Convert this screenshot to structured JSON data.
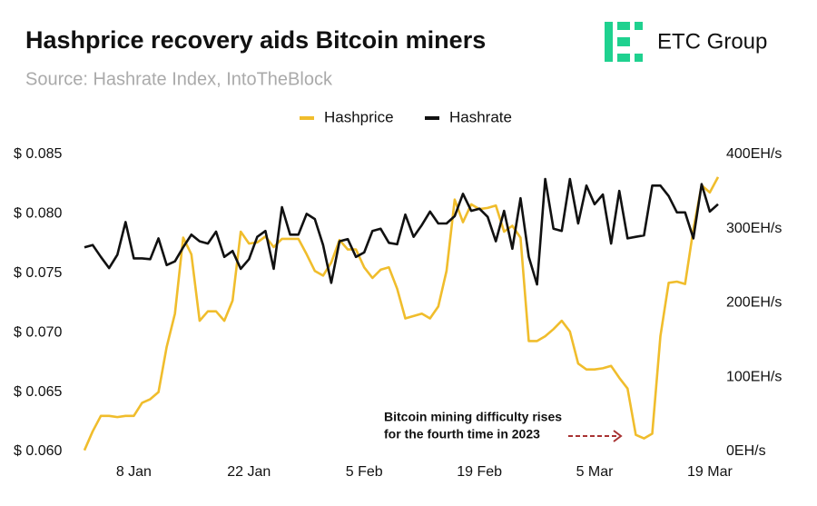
{
  "chart_data": {
    "type": "line",
    "title": "Hashprice recovery aids Bitcoin miners",
    "subtitle": "Source: Hashrate Index, IntoTheBlock",
    "brand": "ETC Group",
    "annotation": [
      "Bitcoin mining difficulty rises",
      "for the fourth time in 2023"
    ],
    "categories": [
      null,
      null,
      null,
      null,
      null,
      null,
      "8 Jan",
      null,
      null,
      null,
      null,
      null,
      null,
      null,
      null,
      null,
      null,
      null,
      null,
      null,
      "22 Jan",
      null,
      null,
      null,
      null,
      null,
      null,
      null,
      null,
      null,
      null,
      null,
      null,
      null,
      "5 Feb",
      null,
      null,
      null,
      null,
      null,
      null,
      null,
      null,
      null,
      null,
      null,
      null,
      null,
      "19 Feb",
      null,
      null,
      null,
      null,
      null,
      null,
      null,
      null,
      null,
      null,
      null,
      null,
      null,
      "5 Mar",
      null,
      null,
      null,
      null,
      null,
      null,
      null,
      null,
      null,
      null,
      null,
      null,
      null,
      "19 Mar",
      null
    ],
    "series": [
      {
        "name": "Hashprice",
        "color": "#f0bd2c",
        "values": [
          0.0601,
          0.0617,
          0.063,
          0.063,
          0.0629,
          0.063,
          0.063,
          0.0641,
          0.0644,
          0.065,
          0.0688,
          0.0716,
          0.078,
          0.0766,
          0.071,
          0.0718,
          0.0718,
          0.071,
          0.0727,
          0.0785,
          0.0775,
          0.0776,
          0.0781,
          0.0772,
          0.0779,
          0.0779,
          0.0779,
          0.0766,
          0.0752,
          0.0748,
          0.0759,
          0.0778,
          0.077,
          0.077,
          0.0755,
          0.0746,
          0.0753,
          0.0755,
          0.0737,
          0.0712,
          0.0714,
          0.0716,
          0.0712,
          0.0722,
          0.0752,
          0.0812,
          0.0793,
          0.0808,
          0.0804,
          0.0805,
          0.0807,
          0.0785,
          0.079,
          0.078,
          0.0693,
          0.0693,
          0.0697,
          0.0703,
          0.071,
          0.0701,
          0.0674,
          0.0669,
          0.0669,
          0.067,
          0.0672,
          0.0662,
          0.0653,
          0.0614,
          0.0611,
          0.0615,
          0.0697,
          0.0742,
          0.0743,
          0.0741,
          0.0787,
          0.0824,
          0.0818,
          0.0831
        ]
      },
      {
        "name": "Hashrate",
        "color": "#111111",
        "axis": "y2",
        "values": [
          275,
          278,
          262,
          247,
          265,
          309,
          260,
          260,
          259,
          287,
          251,
          256,
          275,
          292,
          283,
          280,
          296,
          262,
          270,
          246,
          259,
          289,
          297,
          246,
          329,
          292,
          292,
          320,
          313,
          278,
          227,
          283,
          286,
          262,
          268,
          297,
          300,
          281,
          279,
          319,
          289,
          305,
          323,
          307,
          307,
          317,
          347,
          324,
          327,
          316,
          283,
          324,
          273,
          341,
          262,
          225,
          367,
          300,
          297,
          367,
          307,
          358,
          333,
          346,
          280,
          351,
          287,
          289,
          291,
          358,
          358,
          344,
          322,
          322,
          287,
          360,
          323,
          333
        ]
      }
    ],
    "ylim": [
      0.06,
      0.085
    ],
    "yticks": [
      {
        "value": 0.06,
        "label": "$ 0.060"
      },
      {
        "value": 0.065,
        "label": "$ 0.065"
      },
      {
        "value": 0.07,
        "label": "$ 0.070"
      },
      {
        "value": 0.075,
        "label": "$ 0.075"
      },
      {
        "value": 0.08,
        "label": "$ 0.080"
      },
      {
        "value": 0.085,
        "label": "$ 0.085"
      }
    ],
    "y2lim": [
      0,
      400
    ],
    "y2ticks": [
      {
        "value": 0,
        "label": "0EH/s"
      },
      {
        "value": 100,
        "label": "100EH/s"
      },
      {
        "value": 200,
        "label": "200EH/s"
      },
      {
        "value": 300,
        "label": "300EH/s"
      },
      {
        "value": 400,
        "label": "400EH/s"
      }
    ],
    "legend": "top"
  }
}
